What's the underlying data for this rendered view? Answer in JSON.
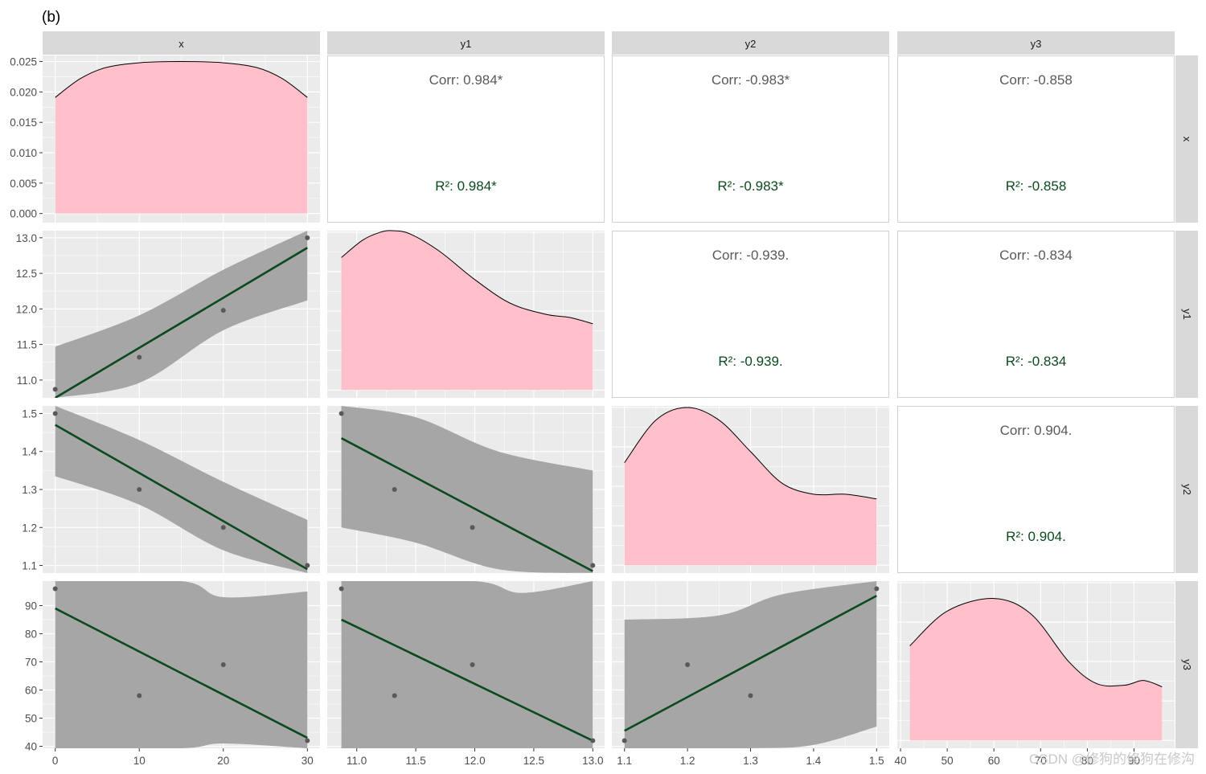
{
  "figure": {
    "panel_label": "(b)",
    "variables": [
      "x",
      "y1",
      "y2",
      "y3"
    ],
    "colors": {
      "panel_bg": "#ebebeb",
      "grid": "#ffffff",
      "strip_bg": "#d9d9d9",
      "density_fill": "#ffc0cb",
      "ribbon": "#a6a6a6",
      "fit_line": "#0b4a1e",
      "point": "#595959",
      "corr_text": "#595959",
      "r2_text": "#0b4a1e"
    },
    "watermark": "CSDN @修狗的修狗在修沟"
  },
  "chart_data": {
    "type": "scatter-matrix",
    "title": "(b)",
    "variables": [
      "x",
      "y1",
      "y2",
      "y3"
    ],
    "observations": {
      "x": [
        0,
        10,
        20,
        30
      ],
      "y1": [
        10.87,
        11.32,
        11.98,
        13.0
      ],
      "y2": [
        1.5,
        1.3,
        1.2,
        1.1
      ],
      "y3": [
        96,
        58,
        69,
        42
      ]
    },
    "axes": {
      "x": {
        "lim": [
          -1.5,
          31.5
        ],
        "ticks": [
          0,
          10,
          20,
          30
        ],
        "tick_labels": [
          "0",
          "10",
          "20",
          "30"
        ]
      },
      "y1": {
        "lim": [
          10.75,
          13.1
        ],
        "ticks": [
          11.0,
          11.5,
          12.0,
          12.5,
          13.0
        ],
        "tick_labels": [
          "11.0",
          "11.5",
          "12.0",
          "12.5",
          "13.0"
        ]
      },
      "y2": {
        "lim": [
          1.08,
          1.52
        ],
        "ticks": [
          1.1,
          1.2,
          1.3,
          1.4,
          1.5
        ],
        "tick_labels": [
          "1.1",
          "1.2",
          "1.3",
          "1.4",
          "1.5"
        ]
      },
      "y3": {
        "lim": [
          39.3,
          98.7
        ],
        "ticks": [
          40,
          50,
          60,
          70,
          80,
          90
        ],
        "tick_labels": [
          "40",
          "50",
          "60",
          "70",
          "80",
          "90"
        ]
      }
    },
    "density_axis": {
      "lim": [
        -0.0015,
        0.026
      ],
      "ticks": [
        0,
        0.005,
        0.01,
        0.015,
        0.02,
        0.025
      ],
      "tick_labels": [
        "0.000",
        "0.005",
        "0.010",
        "0.015",
        "0.020",
        "0.025"
      ]
    },
    "diagonal_density": [
      {
        "var": "x",
        "x": [
          0,
          3,
          6,
          10,
          15,
          20,
          24,
          27,
          30
        ],
        "y": [
          0.0191,
          0.0222,
          0.024,
          0.0248,
          0.025,
          0.0248,
          0.024,
          0.0222,
          0.0191
        ]
      },
      {
        "var": "y1",
        "x": [
          10.87,
          11.05,
          11.2,
          11.3,
          11.45,
          11.7,
          12.0,
          12.3,
          12.6,
          12.8,
          13.0
        ],
        "y": [
          0.84,
          0.95,
          1.0,
          1.01,
          0.99,
          0.88,
          0.7,
          0.55,
          0.48,
          0.46,
          0.42
        ]
      },
      {
        "var": "y2",
        "x": [
          1.1,
          1.15,
          1.2,
          1.25,
          1.3,
          1.35,
          1.4,
          1.45,
          1.5
        ],
        "y": [
          0.65,
          0.92,
          1.0,
          0.92,
          0.72,
          0.52,
          0.45,
          0.45,
          0.42
        ]
      },
      {
        "var": "y3",
        "x": [
          42,
          50,
          60,
          68,
          76,
          82,
          88,
          92,
          96
        ],
        "y": [
          0.6,
          0.82,
          0.9,
          0.8,
          0.5,
          0.36,
          0.35,
          0.38,
          0.34
        ]
      }
    ],
    "fits": [
      {
        "row": "y1",
        "col": "x",
        "line": [
          [
            0,
            10.75
          ],
          [
            30,
            12.86
          ]
        ],
        "band_upper": [
          [
            0,
            11.47
          ],
          [
            10,
            11.91
          ],
          [
            20,
            12.55
          ],
          [
            30,
            13.1
          ]
        ],
        "band_lower": [
          [
            0,
            10.75
          ],
          [
            10,
            10.96
          ],
          [
            20,
            11.7
          ],
          [
            30,
            12.12
          ]
        ]
      },
      {
        "row": "y2",
        "col": "x",
        "line": [
          [
            0,
            1.47
          ],
          [
            30,
            1.09
          ]
        ],
        "band_upper": [
          [
            0,
            1.52
          ],
          [
            10,
            1.43
          ],
          [
            20,
            1.32
          ],
          [
            30,
            1.22
          ]
        ],
        "band_lower": [
          [
            0,
            1.335
          ],
          [
            10,
            1.26
          ],
          [
            20,
            1.14
          ],
          [
            30,
            1.08
          ]
        ]
      },
      {
        "row": "y2",
        "col": "y1",
        "line": [
          [
            10.87,
            1.435
          ],
          [
            13.0,
            1.085
          ]
        ],
        "band_upper": [
          [
            10.87,
            1.52
          ],
          [
            11.5,
            1.49
          ],
          [
            12.2,
            1.4
          ],
          [
            13.0,
            1.35
          ]
        ],
        "band_lower": [
          [
            10.87,
            1.2
          ],
          [
            11.5,
            1.16
          ],
          [
            12.2,
            1.09
          ],
          [
            13.0,
            1.08
          ]
        ]
      },
      {
        "row": "y3",
        "col": "x",
        "line": [
          [
            0,
            89
          ],
          [
            30,
            43
          ]
        ],
        "band_upper": [
          [
            0,
            98.7
          ],
          [
            15,
            98.7
          ],
          [
            20,
            93
          ],
          [
            30,
            95
          ]
        ],
        "band_lower": [
          [
            0,
            39.3
          ],
          [
            15,
            39.3
          ],
          [
            20,
            41
          ],
          [
            30,
            39.3
          ]
        ]
      },
      {
        "row": "y3",
        "col": "y1",
        "line": [
          [
            10.87,
            85
          ],
          [
            13.0,
            42
          ]
        ],
        "band_upper": [
          [
            10.87,
            98.7
          ],
          [
            12.0,
            98.7
          ],
          [
            12.4,
            94.5
          ],
          [
            13.0,
            98.7
          ]
        ],
        "band_lower": [
          [
            10.87,
            39.3
          ],
          [
            13.0,
            39.3
          ]
        ]
      },
      {
        "row": "y3",
        "col": "y2",
        "line": [
          [
            1.1,
            45.5
          ],
          [
            1.5,
            93.5
          ]
        ],
        "band_upper": [
          [
            1.1,
            85
          ],
          [
            1.25,
            86.5
          ],
          [
            1.35,
            94
          ],
          [
            1.5,
            98.7
          ]
        ],
        "band_lower": [
          [
            1.1,
            39.3
          ],
          [
            1.3,
            39.3
          ],
          [
            1.4,
            40.5
          ],
          [
            1.5,
            47
          ]
        ]
      }
    ],
    "correlations": [
      {
        "row": "x",
        "col": "y1",
        "corr": "Corr: 0.984*",
        "r2": "R²: 0.984*"
      },
      {
        "row": "x",
        "col": "y2",
        "corr": "Corr: -0.983*",
        "r2": "R²: -0.983*"
      },
      {
        "row": "x",
        "col": "y3",
        "corr": "Corr: -0.858",
        "r2": "R²: -0.858"
      },
      {
        "row": "y1",
        "col": "y2",
        "corr": "Corr: -0.939.",
        "r2": "R²: -0.939."
      },
      {
        "row": "y1",
        "col": "y3",
        "corr": "Corr: -0.834",
        "r2": "R²: -0.834"
      },
      {
        "row": "y2",
        "col": "y3",
        "corr": "Corr: 0.904.",
        "r2": "R²: 0.904."
      }
    ]
  }
}
